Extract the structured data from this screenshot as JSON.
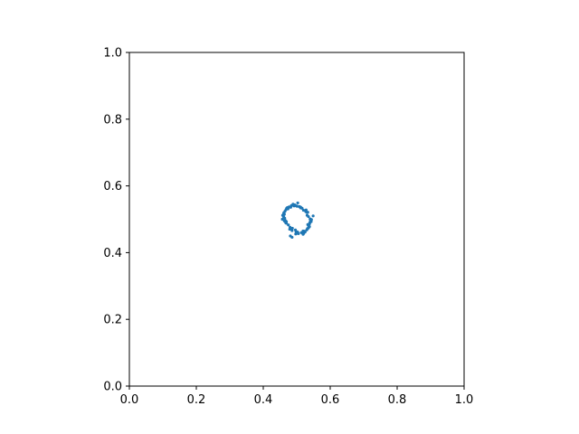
{
  "chart_data": {
    "type": "scatter",
    "title": "",
    "xlabel": "",
    "ylabel": "",
    "xlim": [
      0.0,
      1.0
    ],
    "ylim": [
      0.0,
      1.0
    ],
    "aspect": "equal",
    "grid": false,
    "legend": "none",
    "xticks": [
      "0.0",
      "0.2",
      "0.4",
      "0.6",
      "0.8",
      "1.0"
    ],
    "yticks": [
      "0.0",
      "0.2",
      "0.4",
      "0.6",
      "0.8",
      "1.0"
    ],
    "series": [
      {
        "color": "#1f77b4",
        "marker": "point",
        "shape": "noisy ring",
        "center": [
          0.5,
          0.5
        ],
        "radius": 0.04,
        "x": [
          0.54,
          0.533,
          0.512,
          0.499,
          0.482,
          0.465,
          0.461,
          0.469,
          0.486,
          0.503,
          0.523,
          0.536,
          0.541,
          0.528,
          0.508,
          0.493,
          0.474,
          0.463,
          0.466,
          0.48,
          0.498,
          0.517,
          0.532,
          0.539,
          0.531,
          0.516,
          0.494,
          0.477,
          0.462,
          0.464,
          0.475,
          0.496,
          0.514,
          0.53,
          0.538,
          0.535,
          0.52,
          0.501,
          0.484,
          0.468,
          0.46,
          0.467,
          0.482,
          0.501,
          0.521,
          0.535,
          0.543,
          0.527,
          0.509,
          0.489,
          0.472,
          0.461,
          0.469,
          0.487,
          0.505,
          0.525,
          0.538,
          0.544,
          0.53,
          0.512,
          0.492,
          0.47,
          0.458,
          0.463,
          0.479,
          0.497,
          0.519,
          0.533,
          0.519,
          0.481,
          0.549,
          0.457,
          0.503,
          0.486
        ],
        "y": [
          0.501,
          0.521,
          0.536,
          0.54,
          0.536,
          0.524,
          0.507,
          0.488,
          0.466,
          0.461,
          0.464,
          0.479,
          0.497,
          0.528,
          0.538,
          0.542,
          0.531,
          0.515,
          0.496,
          0.476,
          0.463,
          0.459,
          0.472,
          0.49,
          0.512,
          0.533,
          0.543,
          0.537,
          0.52,
          0.503,
          0.483,
          0.468,
          0.46,
          0.468,
          0.486,
          0.508,
          0.527,
          0.539,
          0.541,
          0.529,
          0.511,
          0.49,
          0.471,
          0.462,
          0.458,
          0.474,
          0.493,
          0.523,
          0.537,
          0.545,
          0.535,
          0.517,
          0.493,
          0.473,
          0.457,
          0.462,
          0.478,
          0.499,
          0.521,
          0.534,
          0.54,
          0.533,
          0.512,
          0.495,
          0.47,
          0.456,
          0.465,
          0.484,
          0.455,
          0.45,
          0.51,
          0.5,
          0.549,
          0.446
        ]
      }
    ]
  }
}
